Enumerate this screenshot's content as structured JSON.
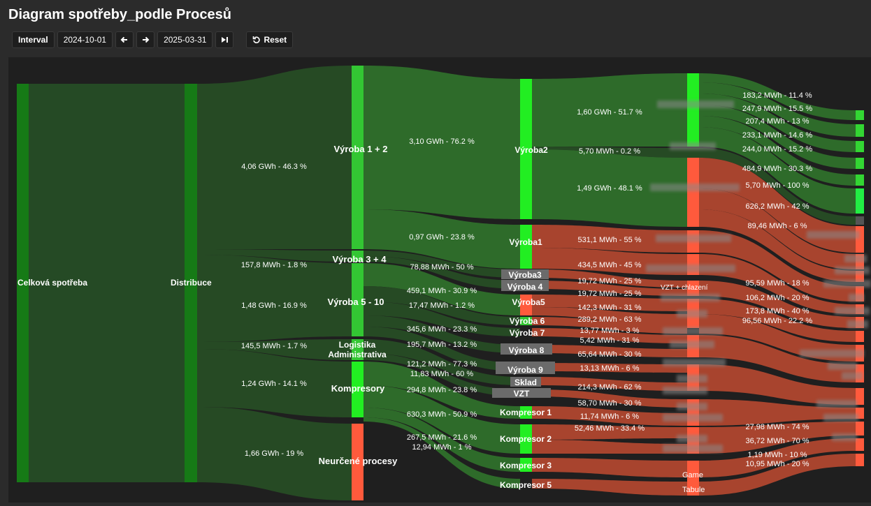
{
  "title": "Diagram spotřeby_podle Procesů",
  "toolbar": {
    "interval": "Interval",
    "start": "2024-10-01",
    "end": "2025-03-31",
    "reset": "Reset"
  },
  "colors": {
    "bg": "#1f1f1f",
    "root_node": "#167a16",
    "proc_node": "#33c633",
    "bright_node": "#22ee22",
    "red_node": "#ff5a3c",
    "green_link": "#2e6b2a",
    "dark_green_link": "#264a24",
    "red_link": "#a8442e",
    "gray_node": "#6b6b6b"
  },
  "chart_data": {
    "type": "sankey",
    "nodes": {
      "root": "Celková spotřeba",
      "distribution": "Distribuce",
      "level1": [
        "Výroba 1 + 2",
        "Výroba 3 + 4",
        "Výroba 5 - 10",
        "Logistika Administrativa",
        "Kompresory",
        "Neurčené procesy"
      ],
      "level2": [
        "Výroba2",
        "Výroba1",
        "Výroba3",
        "Výroba 4",
        "Výroba5",
        "Výroba 6",
        "Výroba 7",
        "Výroba 8",
        "Výroba 9",
        "Sklad",
        "VZT",
        "Kompresor 1",
        "Kompresor 2",
        "Kompresor 3",
        "Kompresor 5"
      ]
    },
    "flows_level1": [
      {
        "to": "Výroba 1 + 2",
        "label": "4,06 GWh - 46.3 %"
      },
      {
        "to": "Výroba 3 + 4",
        "label": "157,8 MWh - 1.8 %"
      },
      {
        "to": "Výroba 5 - 10",
        "label": "1,48 GWh - 16.9 %"
      },
      {
        "to": "Logistika Administrativa",
        "label": "145,5 MWh - 1.7 %"
      },
      {
        "to": "Kompresory",
        "label": "1,24 GWh - 14.1 %"
      },
      {
        "to": "Neurčené procesy",
        "label": "1,66 GWh - 19 %"
      }
    ],
    "flows_level2": [
      "3,10 GWh - 76.2 %",
      "0,97 GWh - 23.8 %",
      "78,88 MWh - 50 %",
      "459,1 MWh - 30.9 %",
      "17,47 MWh - 1.2 %",
      "345,6 MWh - 23.3 %",
      "195,7 MWh - 13.2 %",
      "121,2 MWh - 77.3 %",
      "11,83 MWh - 60 %",
      "294,8 MWh - 23.8 %",
      "630,3 MWh - 50.9 %",
      "267,5 MWh - 21.6 %",
      "12,94 MWh - 1 %"
    ],
    "flows_level3": [
      "1,60 GWh - 51.7 %",
      "5,70 MWh - 0.2 %",
      "1,49 GWh - 48.1 %",
      "531,1 MWh - 55 %",
      "434,5 MWh - 45 %",
      "19,72 MWh - 25 %",
      "19,72 MWh - 25 %",
      "142,3 MWh - 31 %",
      "289,2 MWh - 63 %",
      "13,77 MWh - 3 %",
      "5,42 MWh - 31 %",
      "65,64 MWh - 30 %",
      "13,13 MWh - 6 %",
      "214,3 MWh - 62 %",
      "58,70 MWh - 30 %",
      "11,74 MWh - 6 %",
      "52,46 MWh - 33.4 %"
    ],
    "flows_level4": [
      "183,2 MWh - 11.4 %",
      "247,9 MWh - 15.5 %",
      "207,4 MWh - 13 %",
      "233,1 MWh - 14.6 %",
      "244,0 MWh - 15.2 %",
      "484,9 MWh - 30.3 %",
      "5,70 MWh - 100 %",
      "626,2 MWh - 42 %",
      "89,46 MWh - 6 %",
      "95,59 MWh - 18 %",
      "106,2 MWh - 20 %",
      "173,8 MWh - 40 %",
      "96,56 MWh - 22.2 %",
      "27,98 MWh - 74 %",
      "36,72 MWh - 70 %",
      "1,19 MWh - 10 %",
      "10,95 MWh - 20 %"
    ],
    "visible_col3_labels": [
      "VZT + chlazení",
      "Game",
      "Tabule"
    ]
  }
}
